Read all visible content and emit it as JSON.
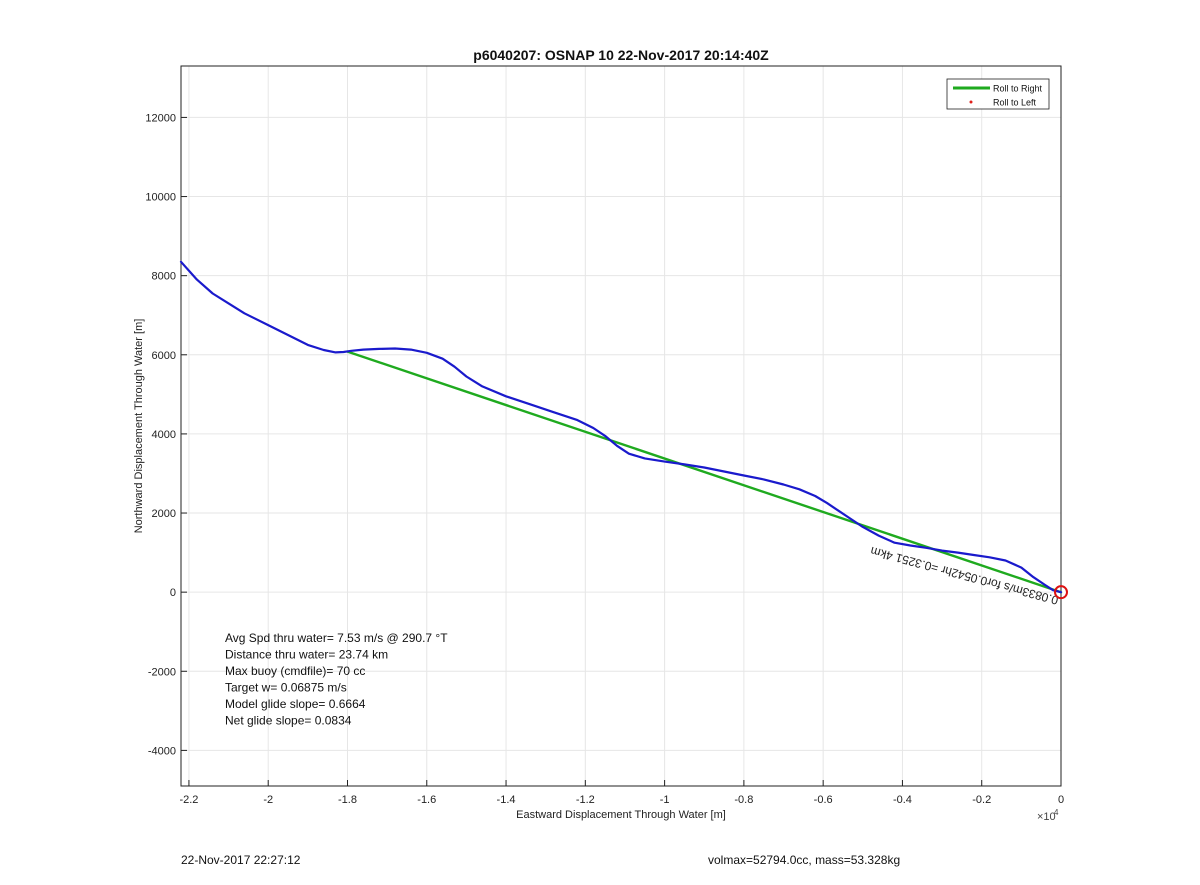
{
  "chart_data": {
    "type": "line",
    "title": "p6040207: OSNAP 10 22-Nov-2017 20:14:40Z",
    "xlabel": "Eastward Displacement Through Water [m]",
    "ylabel": "Northward Displacement Through Water [m]",
    "x_multiplier_label": "×10",
    "x_multiplier_exponent": "4",
    "xlim": [
      -2.22,
      0
    ],
    "ylim": [
      -4900,
      13300
    ],
    "x_ticks": [
      -2.2,
      -2,
      -1.8,
      -1.6,
      -1.4,
      -1.2,
      -1,
      -0.8,
      -0.6,
      -0.4,
      -0.2,
      0
    ],
    "x_tick_labels": [
      "-2.2",
      "-2",
      "-1.8",
      "-1.6",
      "-1.4",
      "-1.2",
      "-1",
      "-0.8",
      "-0.6",
      "-0.4",
      "-0.2",
      "0"
    ],
    "y_ticks": [
      -4000,
      -2000,
      0,
      2000,
      4000,
      6000,
      8000,
      10000,
      12000
    ],
    "y_tick_labels": [
      "-4000",
      "-2000",
      "0",
      "2000",
      "4000",
      "6000",
      "8000",
      "10000",
      "12000"
    ],
    "grid": true,
    "legend_position": "top-right",
    "legend": [
      {
        "label": "Roll to Right",
        "color": "#1faa1f",
        "marker": "line"
      },
      {
        "label": "Roll to Left",
        "color": "#e0201b",
        "marker": "dot"
      }
    ],
    "series": [
      {
        "color": "#1a1acc",
        "x": [
          -2.22,
          -2.18,
          -2.14,
          -2.1,
          -2.06,
          -2.0,
          -1.95,
          -1.9,
          -1.86,
          -1.83,
          -1.81,
          -1.79,
          -1.76,
          -1.72,
          -1.68,
          -1.64,
          -1.6,
          -1.56,
          -1.53,
          -1.5,
          -1.46,
          -1.4,
          -1.34,
          -1.28,
          -1.22,
          -1.18,
          -1.15,
          -1.12,
          -1.09,
          -1.05,
          -1.0,
          -0.95,
          -0.9,
          -0.85,
          -0.8,
          -0.75,
          -0.7,
          -0.66,
          -0.62,
          -0.59,
          -0.56,
          -0.53,
          -0.5,
          -0.46,
          -0.42,
          -0.38,
          -0.34,
          -0.3,
          -0.26,
          -0.22,
          -0.18,
          -0.14,
          -0.1,
          -0.07,
          -0.04,
          -0.02,
          0
        ],
        "y": [
          8350,
          7900,
          7550,
          7300,
          7050,
          6750,
          6500,
          6250,
          6120,
          6060,
          6070,
          6100,
          6130,
          6150,
          6160,
          6130,
          6050,
          5900,
          5700,
          5450,
          5200,
          4950,
          4750,
          4550,
          4350,
          4150,
          3950,
          3700,
          3500,
          3380,
          3300,
          3230,
          3150,
          3050,
          2950,
          2850,
          2720,
          2600,
          2430,
          2250,
          2050,
          1850,
          1650,
          1430,
          1250,
          1180,
          1120,
          1050,
          1000,
          940,
          880,
          800,
          620,
          380,
          180,
          50,
          0
        ]
      },
      {
        "name": "Roll to Right",
        "color": "#1faa1f",
        "x": [
          -1.8,
          0
        ],
        "y": [
          6080,
          0
        ]
      }
    ],
    "annotations": [
      {
        "text": "Avg Spd thru water=  7.53 m/s @ 290.7 °T"
      },
      {
        "text": "Distance thru water= 23.74 km"
      },
      {
        "text": "Max buoy (cmdfile)= 70 cc"
      },
      {
        "text": "Target w= 0.06875 m/s"
      },
      {
        "text": "Model glide slope= 0.6664"
      },
      {
        "text": "Net glide slope= 0.0834"
      }
    ],
    "rotated_annotation": "0.0833m/s for0.0542hr =0.3251 4km",
    "end_marker_color": "#dd1111"
  },
  "footer": {
    "left": "22-Nov-2017 22:27:12",
    "right": "volmax=52794.0cc, mass=53.328kg"
  }
}
